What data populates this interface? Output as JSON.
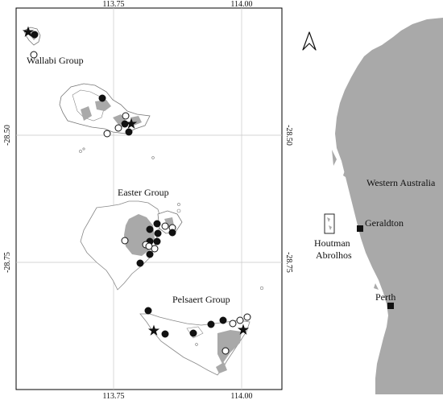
{
  "main_map": {
    "top_ticks": [
      "113.75",
      "114.00"
    ],
    "bottom_ticks": [
      "113.75",
      "114.00"
    ],
    "left_ticks": [
      "-28.50",
      "-28.75"
    ],
    "right_ticks": [
      "-28.50",
      "-28.75"
    ],
    "groups": {
      "wallabi": "Wallabi Group",
      "easter": "Easter Group",
      "pelsaert": "Pelsaert Group"
    },
    "marker_types": [
      "filled-circle",
      "open-circle",
      "star"
    ]
  },
  "inset_map": {
    "region_label": "Western Australia",
    "cities": {
      "geraldton": "Geraldton",
      "perth": "Perth"
    },
    "abrolhos_label_line1": "Houtman",
    "abrolhos_label_line2": "Abrolhos",
    "north_arrow": "north-arrow-icon"
  },
  "colors": {
    "land": "#a9a9a9",
    "reef_outline": "#888888",
    "marker": "#111111",
    "frame": "#000000"
  }
}
